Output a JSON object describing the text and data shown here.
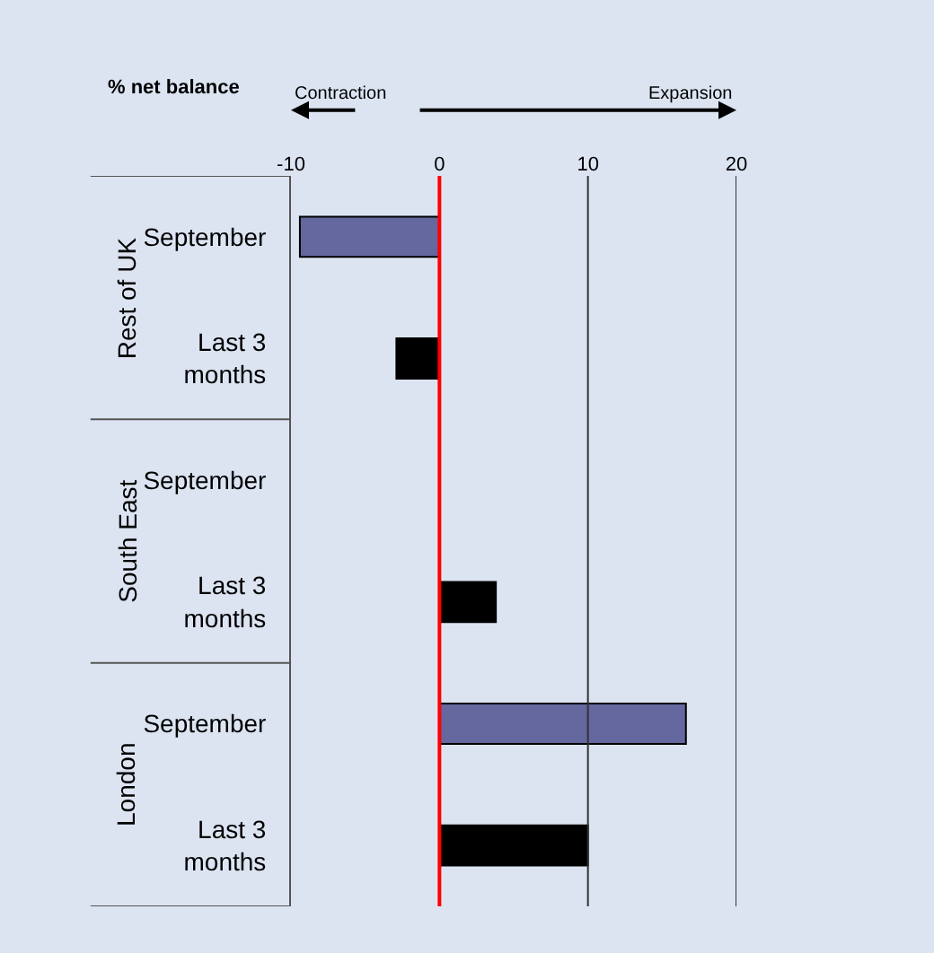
{
  "chart_data": {
    "type": "bar",
    "orientation": "horizontal",
    "ylabel": "% net balance",
    "categories": [
      "September",
      "Last 3 months",
      "September",
      "Last 3 months",
      "September",
      "Last 3 months"
    ],
    "values": [
      -9.4,
      -2.9,
      null,
      3.8,
      16.6,
      10
    ],
    "colors": [
      "#65679f",
      "#000000",
      "#65679f",
      "#000000",
      "#65679f",
      "#000000"
    ],
    "xlim": [
      -10,
      20
    ],
    "xticks": [
      -10,
      0,
      10,
      20
    ],
    "ref_lines": [
      {
        "axis": "x",
        "value": 0,
        "color": "#ff0000"
      },
      {
        "axis": "x",
        "value": 10,
        "color": "#333333"
      },
      {
        "axis": "x",
        "value": 20,
        "color": "#333333"
      }
    ],
    "annotations": [
      "Rest of UK",
      "South East",
      "London",
      "Contraction",
      "Expansion"
    ]
  }
}
